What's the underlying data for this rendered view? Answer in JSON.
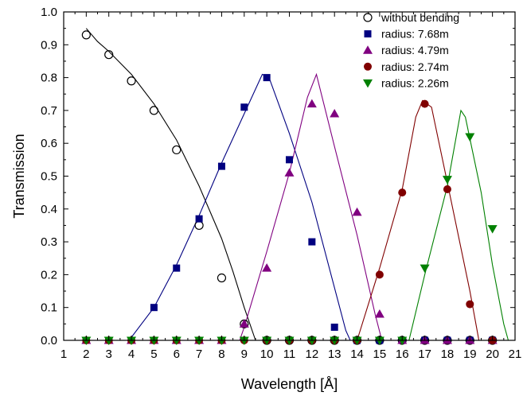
{
  "chart_data": {
    "type": "scatter",
    "xlabel": "Wavelength [Å]",
    "ylabel": "Transmission",
    "xlim": [
      1,
      21
    ],
    "ylim": [
      0,
      1.0
    ],
    "x_ticks": [
      "1",
      "2",
      "3",
      "4",
      "5",
      "6",
      "7",
      "8",
      "9",
      "10",
      "11",
      "12",
      "13",
      "14",
      "15",
      "16",
      "17",
      "18",
      "19",
      "20",
      "21"
    ],
    "y_ticks": [
      "0.0",
      "0.1",
      "0.2",
      "0.3",
      "0.4",
      "0.5",
      "0.6",
      "0.7",
      "0.8",
      "0.9",
      "1.0"
    ],
    "legend_position": "top-right",
    "grid": false,
    "series": [
      {
        "name": "without bending",
        "marker": "circle-open",
        "color": "#000000",
        "points": [
          [
            2,
            0.93
          ],
          [
            3,
            0.87
          ],
          [
            4,
            0.79
          ],
          [
            5,
            0.7
          ],
          [
            6,
            0.58
          ],
          [
            7,
            0.35
          ],
          [
            8,
            0.19
          ],
          [
            9,
            0.05
          ],
          [
            10,
            0.0
          ],
          [
            11,
            0.0
          ],
          [
            12,
            0.0
          ],
          [
            13,
            0.0
          ],
          [
            14,
            0.0
          ],
          [
            15,
            0.0
          ],
          [
            16,
            0.0
          ],
          [
            17,
            0.0
          ],
          [
            18,
            0.0
          ],
          [
            19,
            0.0
          ],
          [
            20,
            0.0
          ]
        ],
        "fit": [
          [
            2,
            0.95
          ],
          [
            2.5,
            0.91
          ],
          [
            3,
            0.88
          ],
          [
            4,
            0.81
          ],
          [
            5,
            0.72
          ],
          [
            6,
            0.61
          ],
          [
            7,
            0.47
          ],
          [
            8,
            0.31
          ],
          [
            8.5,
            0.21
          ],
          [
            9,
            0.1
          ],
          [
            9.5,
            0.0
          ],
          [
            21,
            0.0
          ]
        ]
      },
      {
        "name": "radius: 7.68m",
        "marker": "square",
        "color": "#000080",
        "points": [
          [
            2,
            0.0
          ],
          [
            3,
            0.0
          ],
          [
            4,
            0.0
          ],
          [
            5,
            0.1
          ],
          [
            6,
            0.22
          ],
          [
            7,
            0.37
          ],
          [
            8,
            0.53
          ],
          [
            9,
            0.71
          ],
          [
            10,
            0.8
          ],
          [
            11,
            0.55
          ],
          [
            12,
            0.3
          ],
          [
            13,
            0.04
          ],
          [
            14,
            0.0
          ],
          [
            15,
            0.0
          ],
          [
            16,
            0.0
          ],
          [
            17,
            0.0
          ],
          [
            18,
            0.0
          ],
          [
            19,
            0.0
          ],
          [
            20,
            0.0
          ]
        ],
        "fit": [
          [
            1,
            0.0
          ],
          [
            3.9,
            0.0
          ],
          [
            5,
            0.1
          ],
          [
            6,
            0.23
          ],
          [
            7,
            0.38
          ],
          [
            8,
            0.54
          ],
          [
            9,
            0.69
          ],
          [
            9.8,
            0.81
          ],
          [
            10.1,
            0.8
          ],
          [
            11,
            0.63
          ],
          [
            12,
            0.42
          ],
          [
            13,
            0.16
          ],
          [
            13.5,
            0.03
          ],
          [
            13.7,
            0.0
          ],
          [
            21,
            0.0
          ]
        ]
      },
      {
        "name": "radius: 4.79m",
        "marker": "triangle-up",
        "color": "#800080",
        "points": [
          [
            2,
            0.0
          ],
          [
            3,
            0.0
          ],
          [
            4,
            0.0
          ],
          [
            5,
            0.0
          ],
          [
            6,
            0.0
          ],
          [
            7,
            0.0
          ],
          [
            8,
            0.0
          ],
          [
            9,
            0.05
          ],
          [
            10,
            0.22
          ],
          [
            11,
            0.51
          ],
          [
            12,
            0.72
          ],
          [
            13,
            0.69
          ],
          [
            14,
            0.39
          ],
          [
            15,
            0.08
          ],
          [
            16,
            0.0
          ],
          [
            17,
            0.0
          ],
          [
            18,
            0.0
          ],
          [
            19,
            0.0
          ],
          [
            20,
            0.0
          ]
        ],
        "fit": [
          [
            1,
            0.0
          ],
          [
            8.8,
            0.0
          ],
          [
            9,
            0.04
          ],
          [
            10,
            0.27
          ],
          [
            11,
            0.51
          ],
          [
            11.8,
            0.74
          ],
          [
            12.2,
            0.81
          ],
          [
            13,
            0.59
          ],
          [
            14,
            0.32
          ],
          [
            14.8,
            0.08
          ],
          [
            15.1,
            0.0
          ],
          [
            21,
            0.0
          ]
        ]
      },
      {
        "name": "radius: 2.74m",
        "marker": "circle",
        "color": "#800000",
        "points": [
          [
            2,
            0.0
          ],
          [
            3,
            0.0
          ],
          [
            4,
            0.0
          ],
          [
            5,
            0.0
          ],
          [
            6,
            0.0
          ],
          [
            7,
            0.0
          ],
          [
            8,
            0.0
          ],
          [
            9,
            0.0
          ],
          [
            10,
            0.0
          ],
          [
            11,
            0.0
          ],
          [
            12,
            0.0
          ],
          [
            13,
            0.0
          ],
          [
            14,
            0.0
          ],
          [
            15,
            0.2
          ],
          [
            16,
            0.45
          ],
          [
            17,
            0.72
          ],
          [
            18,
            0.46
          ],
          [
            19,
            0.11
          ],
          [
            20,
            0.0
          ]
        ],
        "fit": [
          [
            1,
            0.0
          ],
          [
            14,
            0.0
          ],
          [
            15,
            0.22
          ],
          [
            16,
            0.46
          ],
          [
            16.6,
            0.68
          ],
          [
            16.9,
            0.73
          ],
          [
            17.3,
            0.71
          ],
          [
            18,
            0.48
          ],
          [
            19,
            0.15
          ],
          [
            19.4,
            0.0
          ],
          [
            21,
            0.0
          ]
        ]
      },
      {
        "name": "radius: 2.26m",
        "marker": "triangle-down",
        "color": "#008000",
        "points": [
          [
            2,
            0.0
          ],
          [
            3,
            0.0
          ],
          [
            4,
            0.0
          ],
          [
            5,
            0.0
          ],
          [
            6,
            0.0
          ],
          [
            7,
            0.0
          ],
          [
            8,
            0.0
          ],
          [
            9,
            0.0
          ],
          [
            10,
            0.0
          ],
          [
            11,
            0.0
          ],
          [
            12,
            0.0
          ],
          [
            13,
            0.0
          ],
          [
            14,
            0.0
          ],
          [
            15,
            0.0
          ],
          [
            16,
            0.0
          ],
          [
            17,
            0.22
          ],
          [
            18,
            0.49
          ],
          [
            19,
            0.62
          ],
          [
            20,
            0.34
          ]
        ],
        "fit": [
          [
            1,
            0.0
          ],
          [
            16.3,
            0.0
          ],
          [
            17,
            0.2
          ],
          [
            18,
            0.47
          ],
          [
            18.6,
            0.7
          ],
          [
            18.8,
            0.68
          ],
          [
            19.5,
            0.45
          ],
          [
            20,
            0.23
          ],
          [
            20.5,
            0.05
          ],
          [
            20.7,
            0.0
          ],
          [
            21,
            0.0
          ]
        ]
      }
    ]
  }
}
